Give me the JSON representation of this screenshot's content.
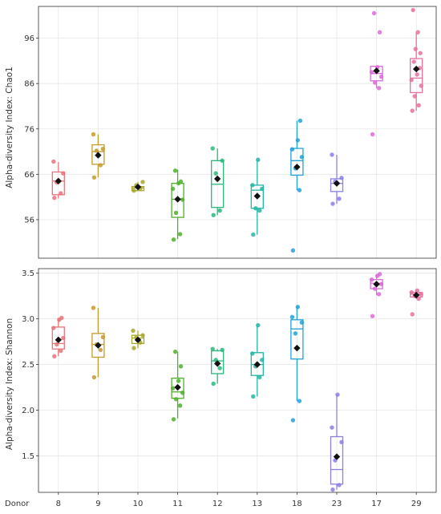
{
  "x_axis": {
    "label": "Donor",
    "categories": [
      "8",
      "9",
      "10",
      "11",
      "12",
      "13",
      "18",
      "23",
      "17",
      "29"
    ]
  },
  "colors": [
    "#e8737a",
    "#c49a2c",
    "#a6a82c",
    "#4fb02a",
    "#28b87a",
    "#22b6a4",
    "#1fa3d8",
    "#8a80e8",
    "#dc6ad8",
    "#e8709c"
  ],
  "chart_data": [
    {
      "type": "box",
      "ylabel": "Alpha-diversity Index: Chao1",
      "yticks": [
        "56",
        "66",
        "76",
        "86",
        "96"
      ],
      "ylim": [
        47.5,
        103
      ],
      "categories": [
        "8",
        "9",
        "10",
        "11",
        "12",
        "13",
        "18",
        "23",
        "17",
        "29"
      ],
      "boxes": [
        {
          "q1": 61.5,
          "median": 64.5,
          "q3": 66.5,
          "whisker_low": 60.7,
          "whisker_high": 68.7,
          "mean": 64.5,
          "points": [
            60.8,
            61.8,
            64.2,
            66.2,
            68.8
          ]
        },
        {
          "q1": 68.2,
          "median": 71.0,
          "q3": 72.5,
          "whisker_low": 65.3,
          "whisker_high": 74.8,
          "mean": 70.2,
          "points": [
            65.3,
            68.0,
            71.2,
            71.6,
            74.8
          ]
        },
        {
          "q1": 62.4,
          "median": 63.0,
          "q3": 63.3,
          "whisker_low": 62.4,
          "whisker_high": 64.3,
          "mean": 63.2,
          "points": [
            62.4,
            62.9,
            63.6,
            64.3
          ]
        },
        {
          "q1": 56.5,
          "median": 60.5,
          "q3": 64.0,
          "whisker_low": 51.7,
          "whisker_high": 67.0,
          "mean": 60.5,
          "points": [
            51.6,
            52.8,
            57.5,
            60.4,
            62.8,
            64.0,
            64.4,
            66.8
          ]
        },
        {
          "q1": 58.7,
          "median": 63.8,
          "q3": 69.0,
          "whisker_low": 57.0,
          "whisker_high": 71.7,
          "mean": 65.0,
          "points": [
            57.0,
            58.0,
            66.2,
            69.0,
            71.7
          ]
        },
        {
          "q1": 58.5,
          "median": 62.5,
          "q3": 63.6,
          "whisker_low": 52.7,
          "whisker_high": 69.2,
          "mean": 61.2,
          "points": [
            52.7,
            58.0,
            58.5,
            62.8,
            63.6,
            69.2
          ]
        },
        {
          "q1": 65.8,
          "median": 69.0,
          "q3": 71.7,
          "whisker_low": 62.5,
          "whisker_high": 77.8,
          "mean": 67.6,
          "points": [
            49.2,
            62.5,
            67.3,
            69.8,
            71.5,
            73.5,
            77.8
          ]
        },
        {
          "q1": 62.2,
          "median": 64.0,
          "q3": 65.0,
          "whisker_low": 59.5,
          "whisker_high": 70.3,
          "mean": 64.0,
          "points": [
            59.5,
            60.6,
            64.4,
            65.2,
            70.3
          ]
        },
        {
          "q1": 86.6,
          "median": 88.2,
          "q3": 89.8,
          "whisker_low": 85.0,
          "whisker_high": 89.9,
          "mean": 88.8,
          "points": [
            74.8,
            85.0,
            86.2,
            87.5,
            88.5,
            89.6,
            97.3,
            101.5
          ]
        },
        {
          "q1": 84.0,
          "median": 87.2,
          "q3": 91.5,
          "whisker_low": 80.0,
          "whisker_high": 97.3,
          "mean": 89.2,
          "points": [
            80.0,
            81.2,
            83.2,
            85.5,
            86.8,
            88.0,
            89.4,
            90.8,
            92.7,
            93.6,
            97.3,
            102.2
          ]
        }
      ]
    },
    {
      "type": "box",
      "ylabel": "Alpha-diversity Index: Shannon",
      "yticks": [
        "1.5",
        "2.0",
        "2.5",
        "3.0",
        "3.5"
      ],
      "ylim": [
        1.1,
        3.55
      ],
      "categories": [
        "8",
        "9",
        "10",
        "11",
        "12",
        "13",
        "18",
        "23",
        "17",
        "29"
      ],
      "boxes": [
        {
          "q1": 2.67,
          "median": 2.73,
          "q3": 2.91,
          "whisker_low": 2.59,
          "whisker_high": 3.01,
          "mean": 2.77,
          "points": [
            2.59,
            2.65,
            2.72,
            2.79,
            2.9,
            2.99,
            3.01
          ]
        },
        {
          "q1": 2.58,
          "median": 2.72,
          "q3": 2.84,
          "whisker_low": 2.36,
          "whisker_high": 3.12,
          "mean": 2.71,
          "points": [
            2.36,
            2.66,
            2.72,
            2.8,
            3.12
          ]
        },
        {
          "q1": 2.73,
          "median": 2.79,
          "q3": 2.82,
          "whisker_low": 2.68,
          "whisker_high": 2.87,
          "mean": 2.77,
          "points": [
            2.68,
            2.74,
            2.8,
            2.82,
            2.87
          ]
        },
        {
          "q1": 2.13,
          "median": 2.2,
          "q3": 2.35,
          "whisker_low": 1.91,
          "whisker_high": 2.64,
          "mean": 2.25,
          "points": [
            1.9,
            2.05,
            2.12,
            2.19,
            2.24,
            2.32,
            2.48,
            2.64
          ]
        },
        {
          "q1": 2.4,
          "median": 2.54,
          "q3": 2.65,
          "whisker_low": 2.29,
          "whisker_high": 2.67,
          "mean": 2.51,
          "points": [
            2.29,
            2.46,
            2.55,
            2.66,
            2.67
          ]
        },
        {
          "q1": 2.38,
          "median": 2.5,
          "q3": 2.63,
          "whisker_low": 2.15,
          "whisker_high": 2.93,
          "mean": 2.5,
          "points": [
            2.15,
            2.36,
            2.48,
            2.55,
            2.62,
            2.93
          ]
        },
        {
          "q1": 2.56,
          "median": 2.89,
          "q3": 2.99,
          "whisker_low": 2.1,
          "whisker_high": 3.13,
          "mean": 2.68,
          "points": [
            1.89,
            2.1,
            2.84,
            2.96,
            3.02,
            3.13
          ]
        },
        {
          "q1": 1.19,
          "median": 1.35,
          "q3": 1.71,
          "whisker_low": 1.13,
          "whisker_high": 2.17,
          "mean": 1.49,
          "points": [
            1.13,
            1.18,
            1.45,
            1.65,
            1.81,
            2.17
          ]
        },
        {
          "q1": 3.33,
          "median": 3.39,
          "q3": 3.43,
          "whisker_low": 3.26,
          "whisker_high": 3.49,
          "mean": 3.38,
          "points": [
            3.03,
            3.27,
            3.33,
            3.38,
            3.43,
            3.47,
            3.49
          ]
        },
        {
          "q1": 3.24,
          "median": 3.27,
          "q3": 3.29,
          "whisker_low": 3.22,
          "whisker_high": 3.31,
          "mean": 3.26,
          "points": [
            3.05,
            3.22,
            3.25,
            3.27,
            3.29,
            3.31
          ]
        }
      ]
    }
  ]
}
